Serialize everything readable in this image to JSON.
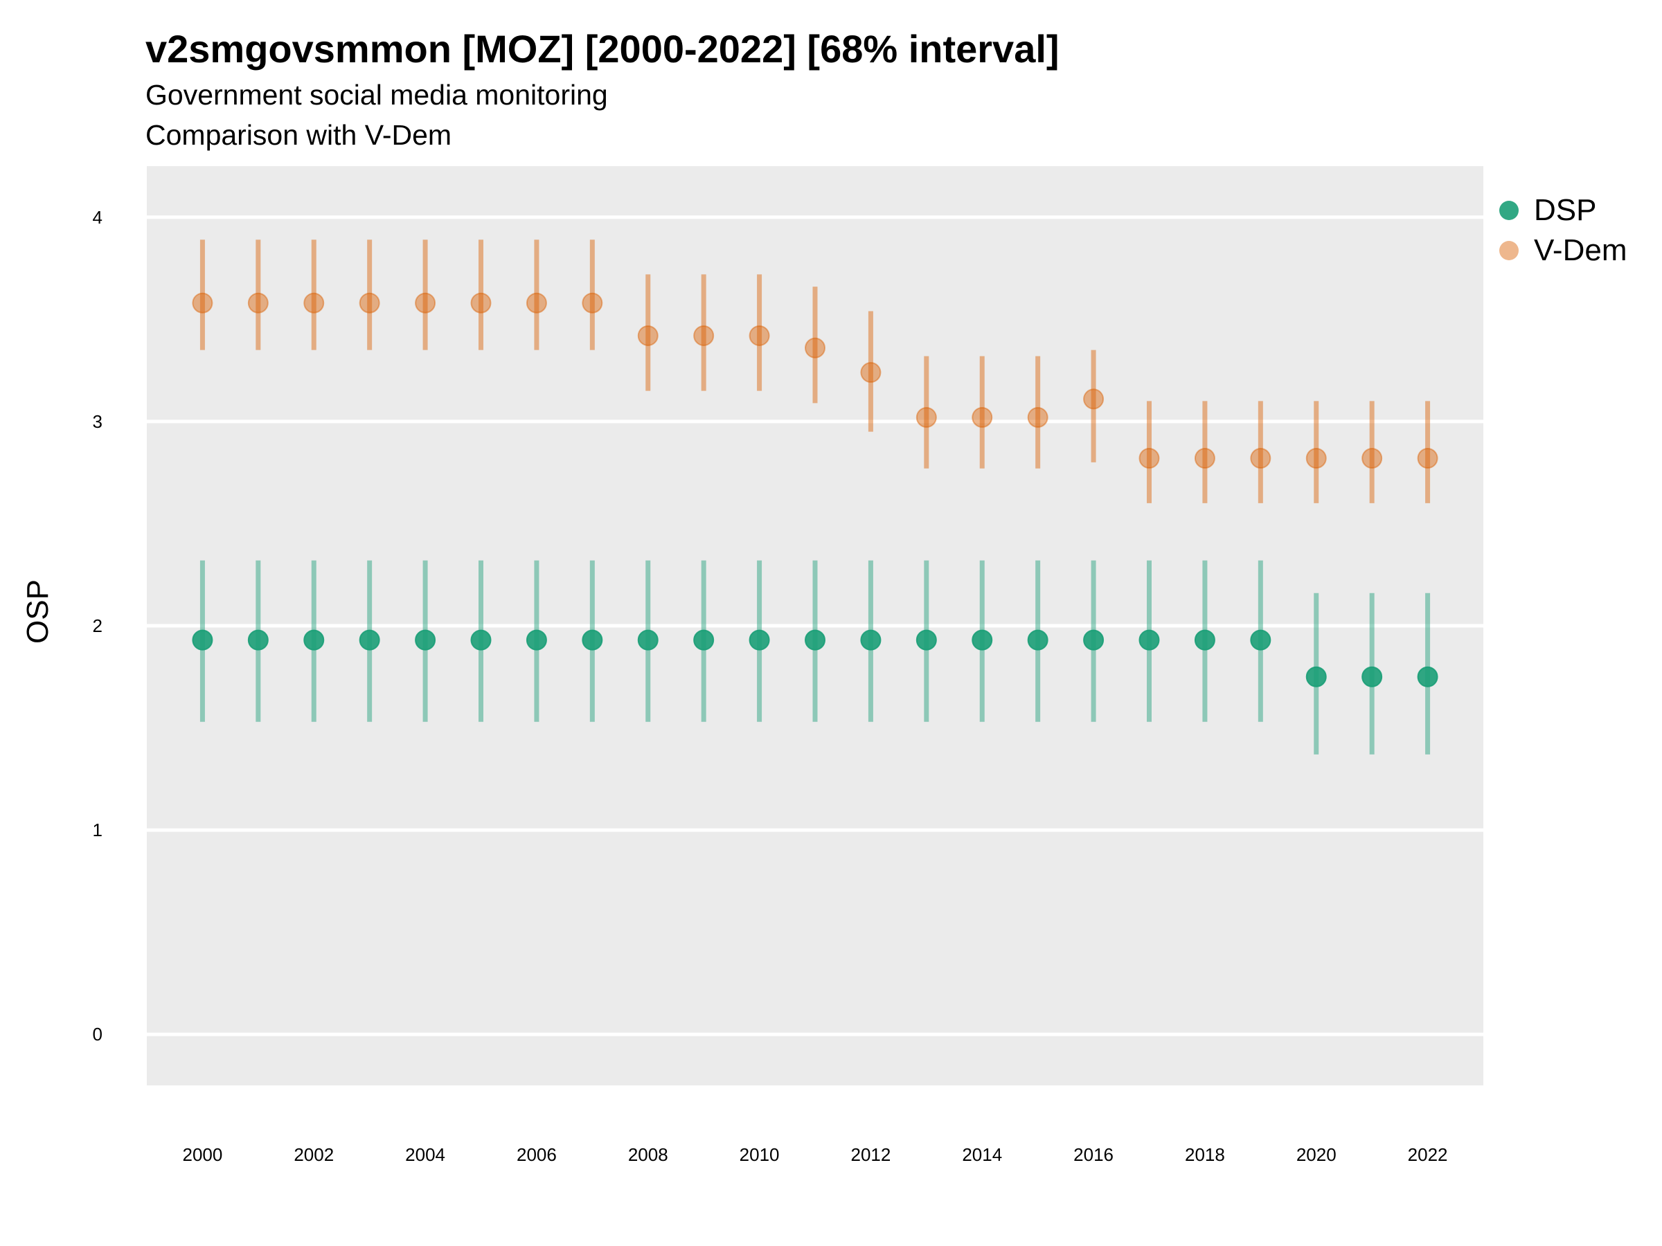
{
  "chart_data": {
    "type": "scatter",
    "title": "v2smgovsmmon [MOZ] [2000-2022] [68% interval]",
    "subtitle": "Government social media monitoring",
    "subtitle2": "Comparison with V-Dem",
    "xlabel": "",
    "ylabel": "OSP",
    "xlim": [
      1999,
      2023
    ],
    "ylim": [
      -0.25,
      4.25
    ],
    "x_ticks": [
      "2000",
      "2002",
      "2004",
      "2006",
      "2008",
      "2010",
      "2012",
      "2014",
      "2016",
      "2018",
      "2020",
      "2022"
    ],
    "y_ticks": [
      "0",
      "1",
      "2",
      "3",
      "4"
    ],
    "grid": true,
    "legend_position": "right",
    "x": [
      2000,
      2001,
      2002,
      2003,
      2004,
      2005,
      2006,
      2007,
      2008,
      2009,
      2010,
      2011,
      2012,
      2013,
      2014,
      2015,
      2016,
      2017,
      2018,
      2019,
      2020,
      2021,
      2022
    ],
    "series": [
      {
        "name": "DSP",
        "color": "#1b9e77",
        "values": [
          1.93,
          1.93,
          1.93,
          1.93,
          1.93,
          1.93,
          1.93,
          1.93,
          1.93,
          1.93,
          1.93,
          1.93,
          1.93,
          1.93,
          1.93,
          1.93,
          1.93,
          1.93,
          1.93,
          1.93,
          1.75,
          1.75,
          1.75
        ],
        "lower": [
          1.53,
          1.53,
          1.53,
          1.53,
          1.53,
          1.53,
          1.53,
          1.53,
          1.53,
          1.53,
          1.53,
          1.53,
          1.53,
          1.53,
          1.53,
          1.53,
          1.53,
          1.53,
          1.53,
          1.53,
          1.37,
          1.37,
          1.37
        ],
        "upper": [
          2.32,
          2.32,
          2.32,
          2.32,
          2.32,
          2.32,
          2.32,
          2.32,
          2.32,
          2.32,
          2.32,
          2.32,
          2.32,
          2.32,
          2.32,
          2.32,
          2.32,
          2.32,
          2.32,
          2.32,
          2.16,
          2.16,
          2.16
        ]
      },
      {
        "name": "V-Dem",
        "color": "#d95f02",
        "values": [
          3.58,
          3.58,
          3.58,
          3.58,
          3.58,
          3.58,
          3.58,
          3.58,
          3.42,
          3.42,
          3.42,
          3.36,
          3.24,
          3.02,
          3.02,
          3.02,
          3.11,
          2.82,
          2.82,
          2.82,
          2.82,
          2.82,
          2.82
        ],
        "lower": [
          3.35,
          3.35,
          3.35,
          3.35,
          3.35,
          3.35,
          3.35,
          3.35,
          3.15,
          3.15,
          3.15,
          3.09,
          2.95,
          2.77,
          2.77,
          2.77,
          2.8,
          2.6,
          2.6,
          2.6,
          2.6,
          2.6,
          2.6
        ],
        "upper": [
          3.89,
          3.89,
          3.89,
          3.89,
          3.89,
          3.89,
          3.89,
          3.89,
          3.72,
          3.72,
          3.72,
          3.66,
          3.54,
          3.32,
          3.32,
          3.32,
          3.35,
          3.1,
          3.1,
          3.1,
          3.1,
          3.1,
          3.1
        ]
      }
    ]
  }
}
